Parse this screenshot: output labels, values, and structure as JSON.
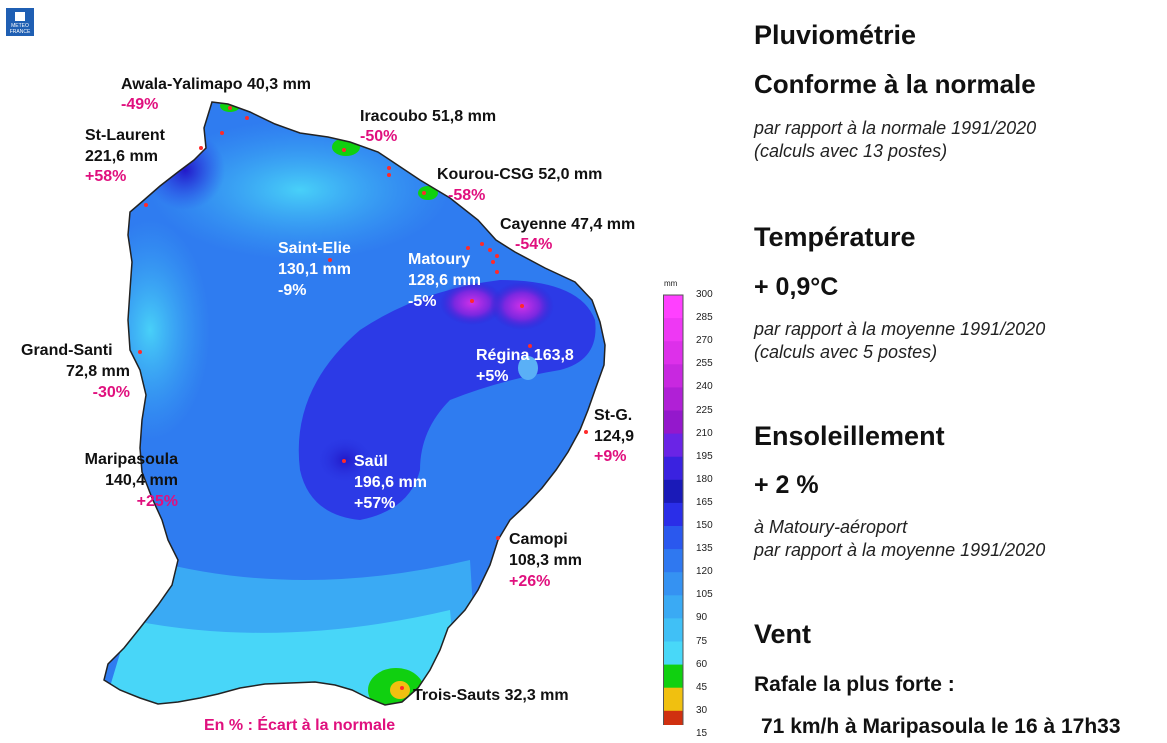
{
  "logo": {
    "text": "METEO FRANCE"
  },
  "stations": [
    {
      "id": "awala",
      "name": "Awala-Yalimapo 40,3 mm",
      "anomaly": "-49%"
    },
    {
      "id": "iracoubo",
      "name": "Iracoubo 51,8 mm",
      "anomaly": "-50%"
    },
    {
      "id": "kourou",
      "name": "Kourou-CSG 52,0 mm",
      "anomaly": "-58%"
    },
    {
      "id": "cayenne",
      "name": "Cayenne 47,4 mm",
      "anomaly": "-54%"
    },
    {
      "id": "stlaurent",
      "name": "St-Laurent",
      "value": "221,6 mm",
      "anomaly": "+58%"
    },
    {
      "id": "saintelie",
      "name": "Saint-Elie",
      "value": "130,1 mm",
      "anomaly": "-9%"
    },
    {
      "id": "matoury",
      "name": "Matoury",
      "value": "128,6 mm",
      "anomaly": "-5%"
    },
    {
      "id": "regina",
      "name": "Régina 163,8",
      "anomaly": "+5%"
    },
    {
      "id": "grandsanti",
      "name": "Grand-Santi",
      "value": "72,8 mm",
      "anomaly": "-30%"
    },
    {
      "id": "stg",
      "name": "St-G.",
      "value": "124,9",
      "anomaly": "+9%"
    },
    {
      "id": "maripasoula",
      "name": "Maripasoula",
      "value": "140,4 mm",
      "anomaly": "+25%"
    },
    {
      "id": "saul",
      "name": "Saül",
      "value": "196,6 mm",
      "anomaly": "+57%"
    },
    {
      "id": "camopi",
      "name": "Camopi",
      "value": "108,3 mm",
      "anomaly": "+26%"
    },
    {
      "id": "troissauts",
      "name": "Trois-Sauts 32,3 mm"
    }
  ],
  "map_note": "En % : Écart à la normale",
  "scale": {
    "unit": "mm",
    "ticks": [
      "300",
      "285",
      "270",
      "255",
      "240",
      "225",
      "210",
      "195",
      "180",
      "165",
      "150",
      "135",
      "120",
      "105",
      "90",
      "75",
      "60",
      "45",
      "30",
      "15"
    ],
    "colors": [
      "#ff40ff",
      "#ee38f4",
      "#dd30ea",
      "#c828e0",
      "#b020d6",
      "#9418cc",
      "#6a24e6",
      "#3a22e0",
      "#1a1ab8",
      "#2a2ee8",
      "#2a58ee",
      "#2f78f0",
      "#3592f2",
      "#3aaaf4",
      "#40c0f6",
      "#48d8f8",
      "#10d010",
      "#f0c010",
      "#d03010"
    ]
  },
  "panel": {
    "title": "Pluviométrie",
    "rain_status": "Conforme à la normale",
    "rain_note1": "par rapport à la normale 1991/2020",
    "rain_note2": "(calculs avec 13 postes)",
    "temp_title": "Température",
    "temp_value": "+ 0,9°C",
    "temp_note1": "par rapport à la moyenne 1991/2020",
    "temp_note2": "(calculs avec 5 postes)",
    "sun_title": "Ensoleillement",
    "sun_value": "+ 2 %",
    "sun_note1": "à Matoury-aéroport",
    "sun_note2": "par rapport à la moyenne 1991/2020",
    "wind_title": "Vent",
    "wind_sub": "Rafale la plus forte :",
    "wind_value": "71 km/h à Maripasoula le 16 à 17h33"
  }
}
